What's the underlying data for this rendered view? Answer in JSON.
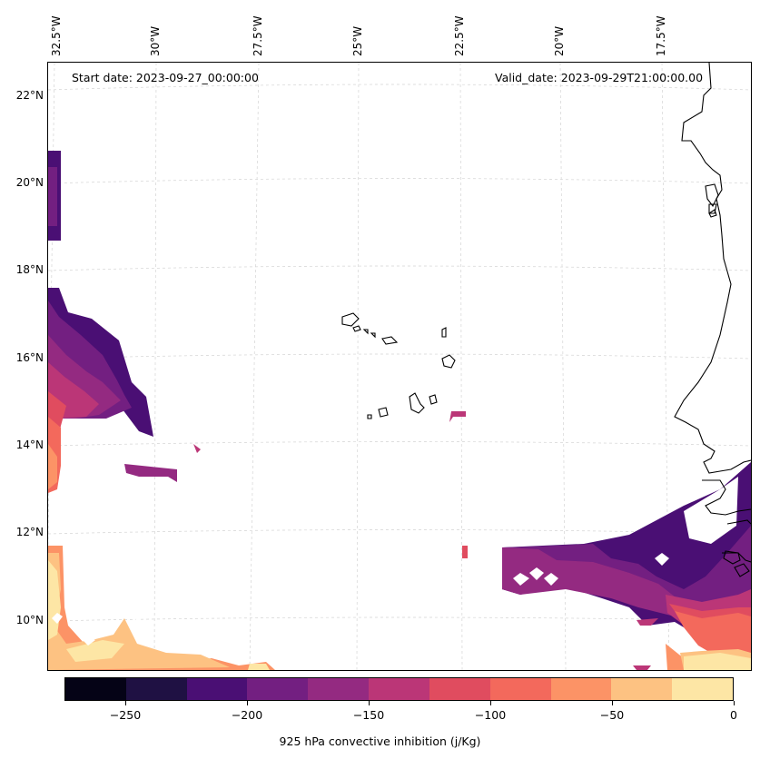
{
  "map": {
    "start_date": "Start date: 2023-09-27_00:00:00",
    "valid_date": "Valid_date: 2023-09-29T21:00:00.00",
    "longitude_labels": [
      "32.5°W",
      "30°W",
      "27.5°W",
      "25°W",
      "22.5°W",
      "20°W",
      "17.5°W"
    ],
    "latitude_labels": [
      "22°N",
      "20°N",
      "18°N",
      "16°N",
      "14°N",
      "12°N",
      "10°N"
    ]
  },
  "colorbar": {
    "title": "925 hPa convective inhibition (j/Kg)",
    "tick_labels": [
      "−250",
      "−200",
      "−150",
      "−100",
      "−50",
      "0"
    ],
    "range": [
      -275,
      0
    ],
    "step": 25,
    "colors": [
      "#050316",
      "#1f1143",
      "#4a0f74",
      "#731f81",
      "#942a81",
      "#bb3677",
      "#e04c5f",
      "#f3695c",
      "#fc9366",
      "#fdc282",
      "#fde6a5"
    ]
  }
}
